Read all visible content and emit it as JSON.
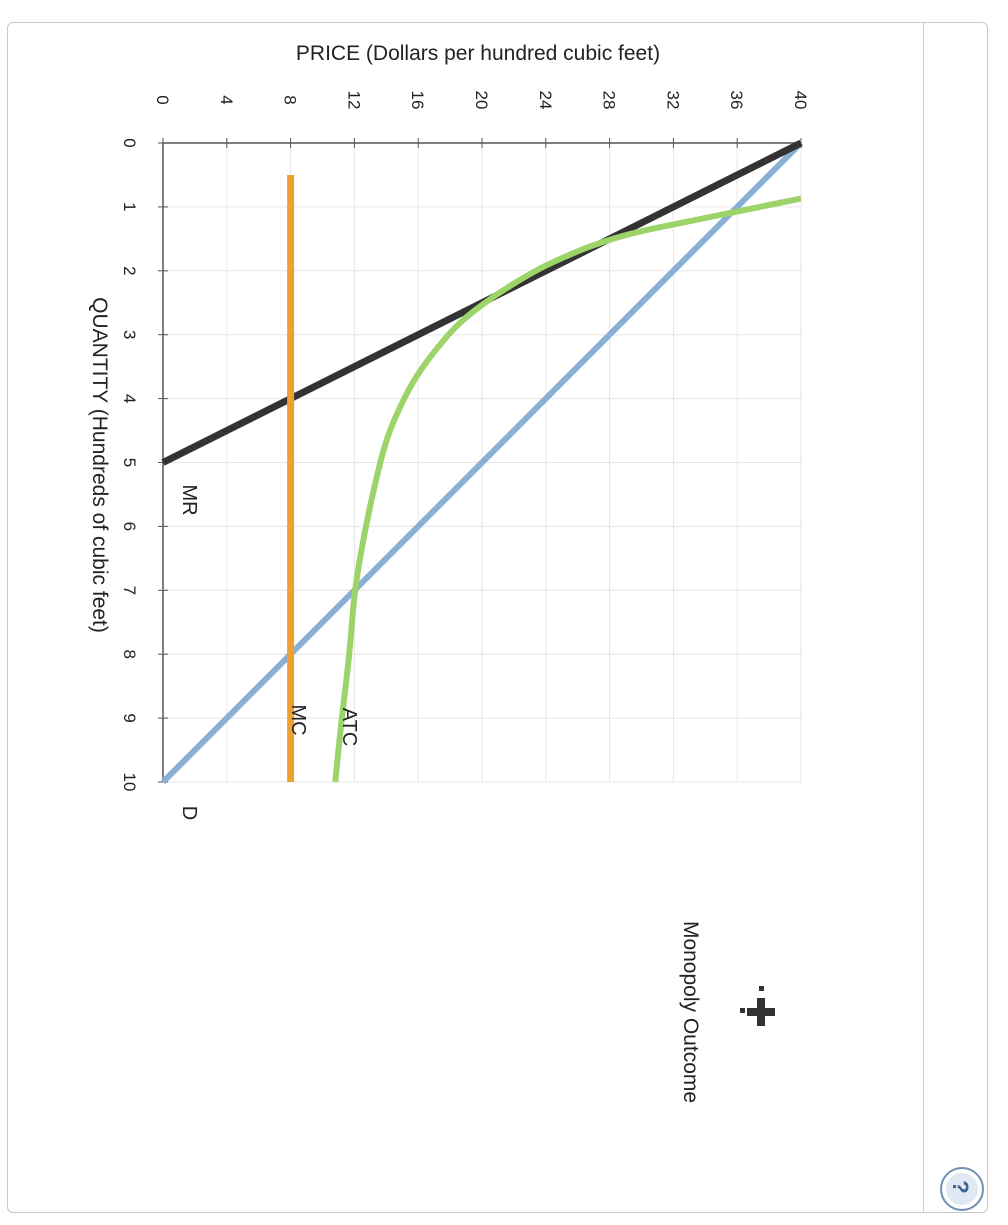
{
  "chart_data": {
    "type": "line",
    "ylabel": "PRICE (Dollars per hundred cubic feet)",
    "xlabel": "QUANTITY (Hundreds of cubic feet)",
    "price_ticks": [
      0,
      4,
      8,
      12,
      16,
      20,
      24,
      28,
      32,
      36,
      40
    ],
    "quantity_ticks": [
      0,
      1,
      2,
      3,
      4,
      5,
      6,
      7,
      8,
      9,
      10
    ],
    "price_range": [
      0,
      40
    ],
    "quantity_range": [
      0,
      10
    ],
    "grid": true,
    "series": [
      {
        "name": "D",
        "color": "#8aafd4",
        "points": [
          [
            0,
            40
          ],
          [
            10,
            0
          ]
        ]
      },
      {
        "name": "MR",
        "color": "#333333",
        "points": [
          [
            0,
            40
          ],
          [
            5,
            0
          ]
        ]
      },
      {
        "name": "MC",
        "color": "#f0a030",
        "points": [
          [
            0.5,
            8
          ],
          [
            10,
            8
          ]
        ]
      },
      {
        "name": "ATC",
        "color": "#9dd46a",
        "points": [
          [
            0.87,
            40
          ],
          [
            1.0,
            37.4
          ],
          [
            1.2,
            33.5
          ],
          [
            1.4,
            29.5
          ],
          [
            1.6,
            26.9
          ],
          [
            1.8,
            25.0
          ],
          [
            2.0,
            23.3
          ],
          [
            2.4,
            20.7
          ],
          [
            2.8,
            18.6
          ],
          [
            3.2,
            17.2
          ],
          [
            3.6,
            16.0
          ],
          [
            4.0,
            15.1
          ],
          [
            4.5,
            14.2
          ],
          [
            5.0,
            13.6
          ],
          [
            6.0,
            12.7
          ],
          [
            7.0,
            12.0
          ],
          [
            8.0,
            11.7
          ],
          [
            9.0,
            11.2
          ],
          [
            10.0,
            10.8
          ]
        ]
      }
    ]
  },
  "tools": {
    "label": "Monopoly Outcome",
    "icon": "plus-marker-icon"
  },
  "help": {
    "label": "?"
  }
}
